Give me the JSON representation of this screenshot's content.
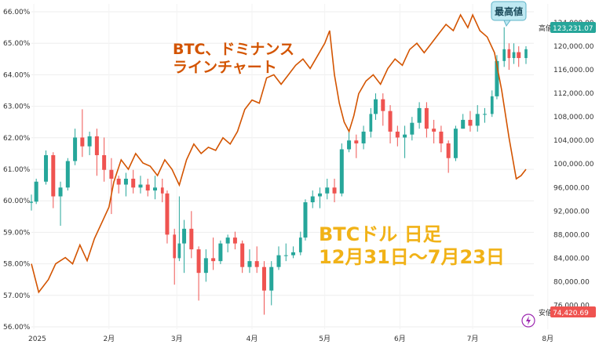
{
  "chart_data": {
    "type": "candlestick+line",
    "left_axis": {
      "ticks": [
        "66.00%",
        "65.00%",
        "64.00%",
        "63.00%",
        "62.00%",
        "61.00%",
        "60.00%",
        "59.00%",
        "58.00%",
        "57.00%",
        "56.00%"
      ],
      "range": [
        56.0,
        66.0
      ]
    },
    "right_axis": {
      "ticks": [
        "124,000.00",
        "120,000.00",
        "116,000.00",
        "112,000.00",
        "108,000.00",
        "104,000.00",
        "100,000.00",
        "96,000.00",
        "92,000.00",
        "88,000.00",
        "84,000.00",
        "80,000.00",
        "76,000.00"
      ],
      "range": [
        74000,
        126000
      ],
      "high_tag": {
        "label": "高値",
        "value": "123,231.07"
      },
      "low_tag": {
        "label": "安値",
        "value": "74,420.69"
      }
    },
    "x_axis": {
      "ticks": [
        "2025",
        "2月",
        "3月",
        "4月",
        "5月",
        "6月",
        "7月",
        "8月"
      ],
      "start": "2024-12-31",
      "end": "2025-07-23"
    },
    "dominance_series": {
      "name": "BTC、ドミナンス ラインチャート",
      "color": "#d35400",
      "points": [
        [
          "2024-12-31",
          58.0
        ],
        [
          "2025-01-03",
          57.1
        ],
        [
          "2025-01-07",
          57.5
        ],
        [
          "2025-01-10",
          58.0
        ],
        [
          "2025-01-14",
          58.2
        ],
        [
          "2025-01-17",
          58.0
        ],
        [
          "2025-01-20",
          58.6
        ],
        [
          "2025-01-23",
          58.1
        ],
        [
          "2025-01-26",
          58.8
        ],
        [
          "2025-01-29",
          59.3
        ],
        [
          "2025-02-01",
          59.8
        ],
        [
          "2025-02-03",
          60.6
        ],
        [
          "2025-02-06",
          61.3
        ],
        [
          "2025-02-09",
          61.0
        ],
        [
          "2025-02-12",
          61.5
        ],
        [
          "2025-02-15",
          61.2
        ],
        [
          "2025-02-18",
          61.1
        ],
        [
          "2025-02-21",
          60.8
        ],
        [
          "2025-02-24",
          61.3
        ],
        [
          "2025-02-27",
          61.0
        ],
        [
          "2025-03-02",
          60.5
        ],
        [
          "2025-03-05",
          61.3
        ],
        [
          "2025-03-08",
          61.8
        ],
        [
          "2025-03-11",
          61.5
        ],
        [
          "2025-03-14",
          61.7
        ],
        [
          "2025-03-17",
          61.6
        ],
        [
          "2025-03-20",
          62.0
        ],
        [
          "2025-03-23",
          61.8
        ],
        [
          "2025-03-26",
          62.2
        ],
        [
          "2025-03-29",
          62.9
        ],
        [
          "2025-04-01",
          63.2
        ],
        [
          "2025-04-04",
          63.1
        ],
        [
          "2025-04-07",
          63.9
        ],
        [
          "2025-04-10",
          64.0
        ],
        [
          "2025-04-13",
          63.7
        ],
        [
          "2025-04-16",
          64.0
        ],
        [
          "2025-04-19",
          64.3
        ],
        [
          "2025-04-22",
          64.5
        ],
        [
          "2025-04-25",
          64.2
        ],
        [
          "2025-04-28",
          64.6
        ],
        [
          "2025-05-01",
          65.0
        ],
        [
          "2025-05-03",
          65.4
        ],
        [
          "2025-05-05",
          64.0
        ],
        [
          "2025-05-07",
          63.1
        ],
        [
          "2025-05-09",
          62.5
        ],
        [
          "2025-05-11",
          62.2
        ],
        [
          "2025-05-13",
          62.7
        ],
        [
          "2025-05-15",
          63.4
        ],
        [
          "2025-05-18",
          63.8
        ],
        [
          "2025-05-21",
          64.0
        ],
        [
          "2025-05-24",
          63.7
        ],
        [
          "2025-05-27",
          64.2
        ],
        [
          "2025-05-30",
          64.5
        ],
        [
          "2025-06-02",
          64.3
        ],
        [
          "2025-06-05",
          64.8
        ],
        [
          "2025-06-08",
          65.0
        ],
        [
          "2025-06-11",
          64.7
        ],
        [
          "2025-06-14",
          65.0
        ],
        [
          "2025-06-17",
          65.3
        ],
        [
          "2025-06-20",
          65.6
        ],
        [
          "2025-06-23",
          65.4
        ],
        [
          "2025-06-26",
          65.9
        ],
        [
          "2025-06-29",
          65.5
        ],
        [
          "2025-07-01",
          65.9
        ],
        [
          "2025-07-04",
          65.4
        ],
        [
          "2025-07-07",
          65.2
        ],
        [
          "2025-07-10",
          64.7
        ],
        [
          "2025-07-13",
          63.5
        ],
        [
          "2025-07-16",
          62.0
        ],
        [
          "2025-07-19",
          60.7
        ],
        [
          "2025-07-21",
          60.8
        ],
        [
          "2025-07-23",
          61.0
        ]
      ]
    },
    "price_series": {
      "name": "BTCドル 日足",
      "up_color": "#26a69a",
      "down_color": "#ef5350",
      "ohlc": [
        [
          "2024-12-31",
          93400,
          94800,
          92100,
          93600
        ],
        [
          "2025-01-02",
          93600,
          97500,
          93200,
          97000
        ],
        [
          "2025-01-06",
          97000,
          102300,
          96500,
          101500
        ],
        [
          "2025-01-09",
          101500,
          102000,
          92500,
          94500
        ],
        [
          "2025-01-12",
          94500,
          97000,
          89500,
          96000
        ],
        [
          "2025-01-15",
          96000,
          101000,
          95500,
          100500
        ],
        [
          "2025-01-18",
          100500,
          106000,
          99800,
          104500
        ],
        [
          "2025-01-21",
          104500,
          109300,
          101200,
          103000
        ],
        [
          "2025-01-24",
          103000,
          105500,
          101500,
          104700
        ],
        [
          "2025-01-27",
          104700,
          106000,
          98000,
          101500
        ],
        [
          "2025-01-30",
          101500,
          104500,
          97000,
          99000
        ],
        [
          "2025-02-02",
          99000,
          101000,
          91500,
          97500
        ],
        [
          "2025-02-05",
          97500,
          98000,
          95000,
          96500
        ],
        [
          "2025-02-08",
          96500,
          98500,
          94500,
          97500
        ],
        [
          "2025-02-11",
          97500,
          99000,
          95000,
          96000
        ],
        [
          "2025-02-14",
          96000,
          98000,
          95000,
          96500
        ],
        [
          "2025-02-17",
          96500,
          97500,
          94500,
          95500
        ],
        [
          "2025-02-20",
          95500,
          98000,
          94000,
          96000
        ],
        [
          "2025-02-23",
          96000,
          97500,
          93500,
          95000
        ],
        [
          "2025-02-25",
          95000,
          95500,
          86500,
          88000
        ],
        [
          "2025-02-28",
          88000,
          89000,
          79500,
          84000
        ],
        [
          "2025-03-02",
          84000,
          94500,
          83500,
          86500
        ],
        [
          "2025-03-04",
          86500,
          90500,
          81500,
          89000
        ],
        [
          "2025-03-07",
          89000,
          92000,
          84000,
          85500
        ],
        [
          "2025-03-10",
          85500,
          86000,
          76800,
          81500
        ],
        [
          "2025-03-13",
          81500,
          85500,
          80000,
          84000
        ],
        [
          "2025-03-16",
          84000,
          87500,
          82000,
          83500
        ],
        [
          "2025-03-19",
          83500,
          87000,
          83000,
          86500
        ],
        [
          "2025-03-22",
          86500,
          88000,
          85000,
          87500
        ],
        [
          "2025-03-25",
          87500,
          88500,
          85500,
          86500
        ],
        [
          "2025-03-28",
          86500,
          87000,
          81500,
          82500
        ],
        [
          "2025-03-31",
          82500,
          85500,
          81500,
          83500
        ],
        [
          "2025-04-03",
          83500,
          86000,
          81500,
          82500
        ],
        [
          "2025-04-06",
          82500,
          83500,
          74400,
          78500
        ],
        [
          "2025-04-09",
          78500,
          83500,
          76000,
          82500
        ],
        [
          "2025-04-12",
          82500,
          86000,
          82000,
          84500
        ],
        [
          "2025-04-15",
          84500,
          86500,
          83500,
          84500
        ],
        [
          "2025-04-18",
          84500,
          86000,
          84000,
          85000
        ],
        [
          "2025-04-21",
          85000,
          88500,
          84500,
          87500
        ],
        [
          "2025-04-23",
          87500,
          94000,
          87000,
          93500
        ],
        [
          "2025-04-26",
          93500,
          95500,
          92500,
          94500
        ],
        [
          "2025-04-29",
          94500,
          96000,
          92500,
          95000
        ],
        [
          "2025-05-02",
          95000,
          97500,
          94000,
          96000
        ],
        [
          "2025-05-05",
          96000,
          97500,
          93500,
          95000
        ],
        [
          "2025-05-08",
          95000,
          103500,
          94500,
          102500
        ],
        [
          "2025-05-11",
          102500,
          105500,
          102000,
          104000
        ],
        [
          "2025-05-14",
          104000,
          105000,
          101000,
          103500
        ],
        [
          "2025-05-17",
          103500,
          106500,
          102500,
          105500
        ],
        [
          "2025-05-20",
          105500,
          109500,
          104500,
          108500
        ],
        [
          "2025-05-22",
          108500,
          112000,
          107500,
          111000
        ],
        [
          "2025-05-25",
          111000,
          112000,
          106500,
          109000
        ],
        [
          "2025-05-28",
          109000,
          110000,
          103500,
          105500
        ],
        [
          "2025-05-31",
          105500,
          106500,
          103000,
          104500
        ],
        [
          "2025-06-03",
          104500,
          106500,
          101000,
          105000
        ],
        [
          "2025-06-06",
          105000,
          108000,
          104000,
          107000
        ],
        [
          "2025-06-09",
          107000,
          110500,
          106000,
          109500
        ],
        [
          "2025-06-12",
          109500,
          110500,
          104500,
          106000
        ],
        [
          "2025-06-15",
          106000,
          107500,
          103500,
          105500
        ],
        [
          "2025-06-18",
          105500,
          106500,
          102000,
          103500
        ],
        [
          "2025-06-21",
          103500,
          104000,
          98500,
          101000
        ],
        [
          "2025-06-24",
          101000,
          106500,
          100500,
          106000
        ],
        [
          "2025-06-27",
          106000,
          108500,
          106000,
          107500
        ],
        [
          "2025-06-30",
          107500,
          109000,
          105500,
          106500
        ],
        [
          "2025-07-03",
          106500,
          110000,
          105500,
          108500
        ],
        [
          "2025-07-06",
          108500,
          109500,
          107000,
          108500
        ],
        [
          "2025-07-09",
          108500,
          112500,
          108000,
          111500
        ],
        [
          "2025-07-11",
          111500,
          118500,
          111000,
          117500
        ],
        [
          "2025-07-14",
          117500,
          123231,
          116500,
          119500
        ],
        [
          "2025-07-16",
          119500,
          120500,
          116000,
          118000
        ],
        [
          "2025-07-18",
          118000,
          120500,
          117000,
          119000
        ],
        [
          "2025-07-20",
          119000,
          120000,
          116500,
          118000
        ],
        [
          "2025-07-23",
          118000,
          120000,
          117000,
          119500
        ]
      ]
    }
  },
  "annotations": {
    "dominance_label_line1": "BTC、ドミナンス",
    "dominance_label_line2": "ラインチャート",
    "price_label_line1": "BTCドル 日足",
    "price_label_line2": "12月31日〜7月23日",
    "peak_callout": "最高値"
  },
  "colors": {
    "dominance": "#d35400",
    "price_label": "#f1b217",
    "callout_bg": "#bfe9f2",
    "callout_border": "#5fb4c8",
    "high_tag_bg": "#26a69a",
    "low_tag_bg": "#ef5350",
    "grid": "#eeeeee"
  },
  "icons": [
    "lightning-icon"
  ]
}
